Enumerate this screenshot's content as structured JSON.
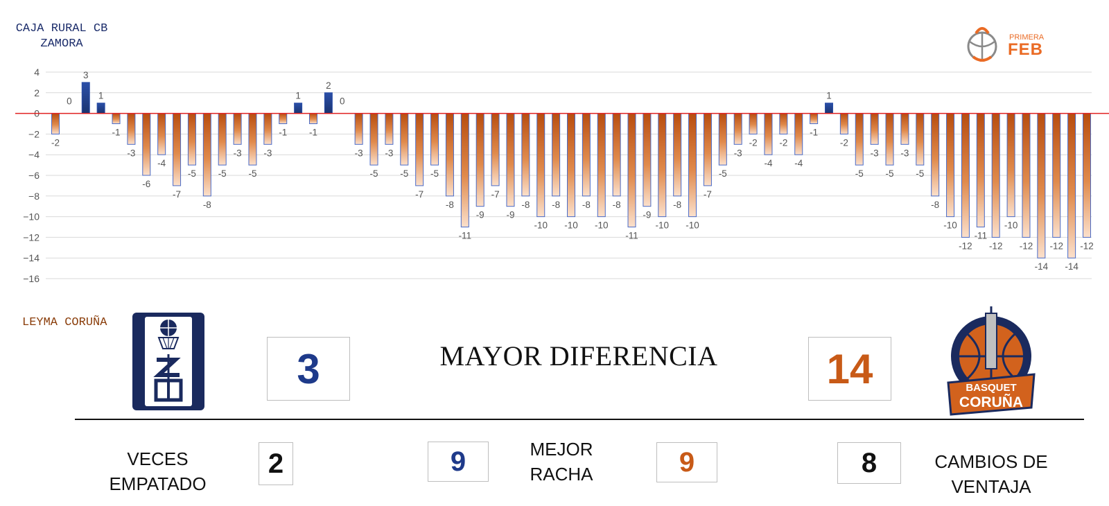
{
  "teams": {
    "home_label": "CAJA RURAL CB ZAMORA",
    "away_label": "LEYMA CORUÑA",
    "home_color": "#1e3a8a",
    "away_color": "#c85a17"
  },
  "league": {
    "small": "PRIMERA",
    "big": "FEB",
    "color": "#ea6b25"
  },
  "away_logo": {
    "line1": "BASQUET",
    "line2": "CORUÑA"
  },
  "home_logo": {
    "icon": "zamora-crest-icon"
  },
  "stats": {
    "mayor_diferencia": {
      "label": "MAYOR DIFERENCIA",
      "home": "3",
      "away": "14"
    },
    "veces_empatado": {
      "label_line1": "VECES",
      "label_line2": "EMPATADO",
      "value": "2"
    },
    "mejor_racha": {
      "label_line1": "MEJOR",
      "label_line2": "RACHA",
      "home": "9",
      "away": "9"
    },
    "cambios_ventaja": {
      "label_line1": "CAMBIOS DE",
      "label_line2": "VENTAJA",
      "value": "8"
    }
  },
  "chart_data": {
    "type": "bar",
    "title": "",
    "xlabel": "",
    "ylabel": "",
    "ylim": [
      -16,
      4
    ],
    "yticks": [
      4,
      2,
      0,
      -2,
      -4,
      -6,
      -8,
      -10,
      -12,
      -14,
      -16
    ],
    "grid": true,
    "zero_line_color": "#e02020",
    "values": [
      -2,
      0,
      3,
      1,
      -1,
      -3,
      -6,
      -4,
      -7,
      -5,
      -8,
      -5,
      -3,
      -5,
      -3,
      -1,
      1,
      -1,
      2,
      0,
      -3,
      -5,
      -3,
      -5,
      -7,
      -5,
      -8,
      -11,
      -9,
      -7,
      -9,
      -8,
      -10,
      -8,
      -10,
      -8,
      -10,
      -8,
      -11,
      -9,
      -10,
      -8,
      -10,
      -7,
      -5,
      -3,
      -2,
      -4,
      -2,
      -4,
      -1,
      1,
      -2,
      -5,
      -3,
      -5,
      -3,
      -5,
      -8,
      -10,
      -12,
      -11,
      -12,
      -10,
      -12,
      -14,
      -12,
      -14,
      -12
    ]
  }
}
